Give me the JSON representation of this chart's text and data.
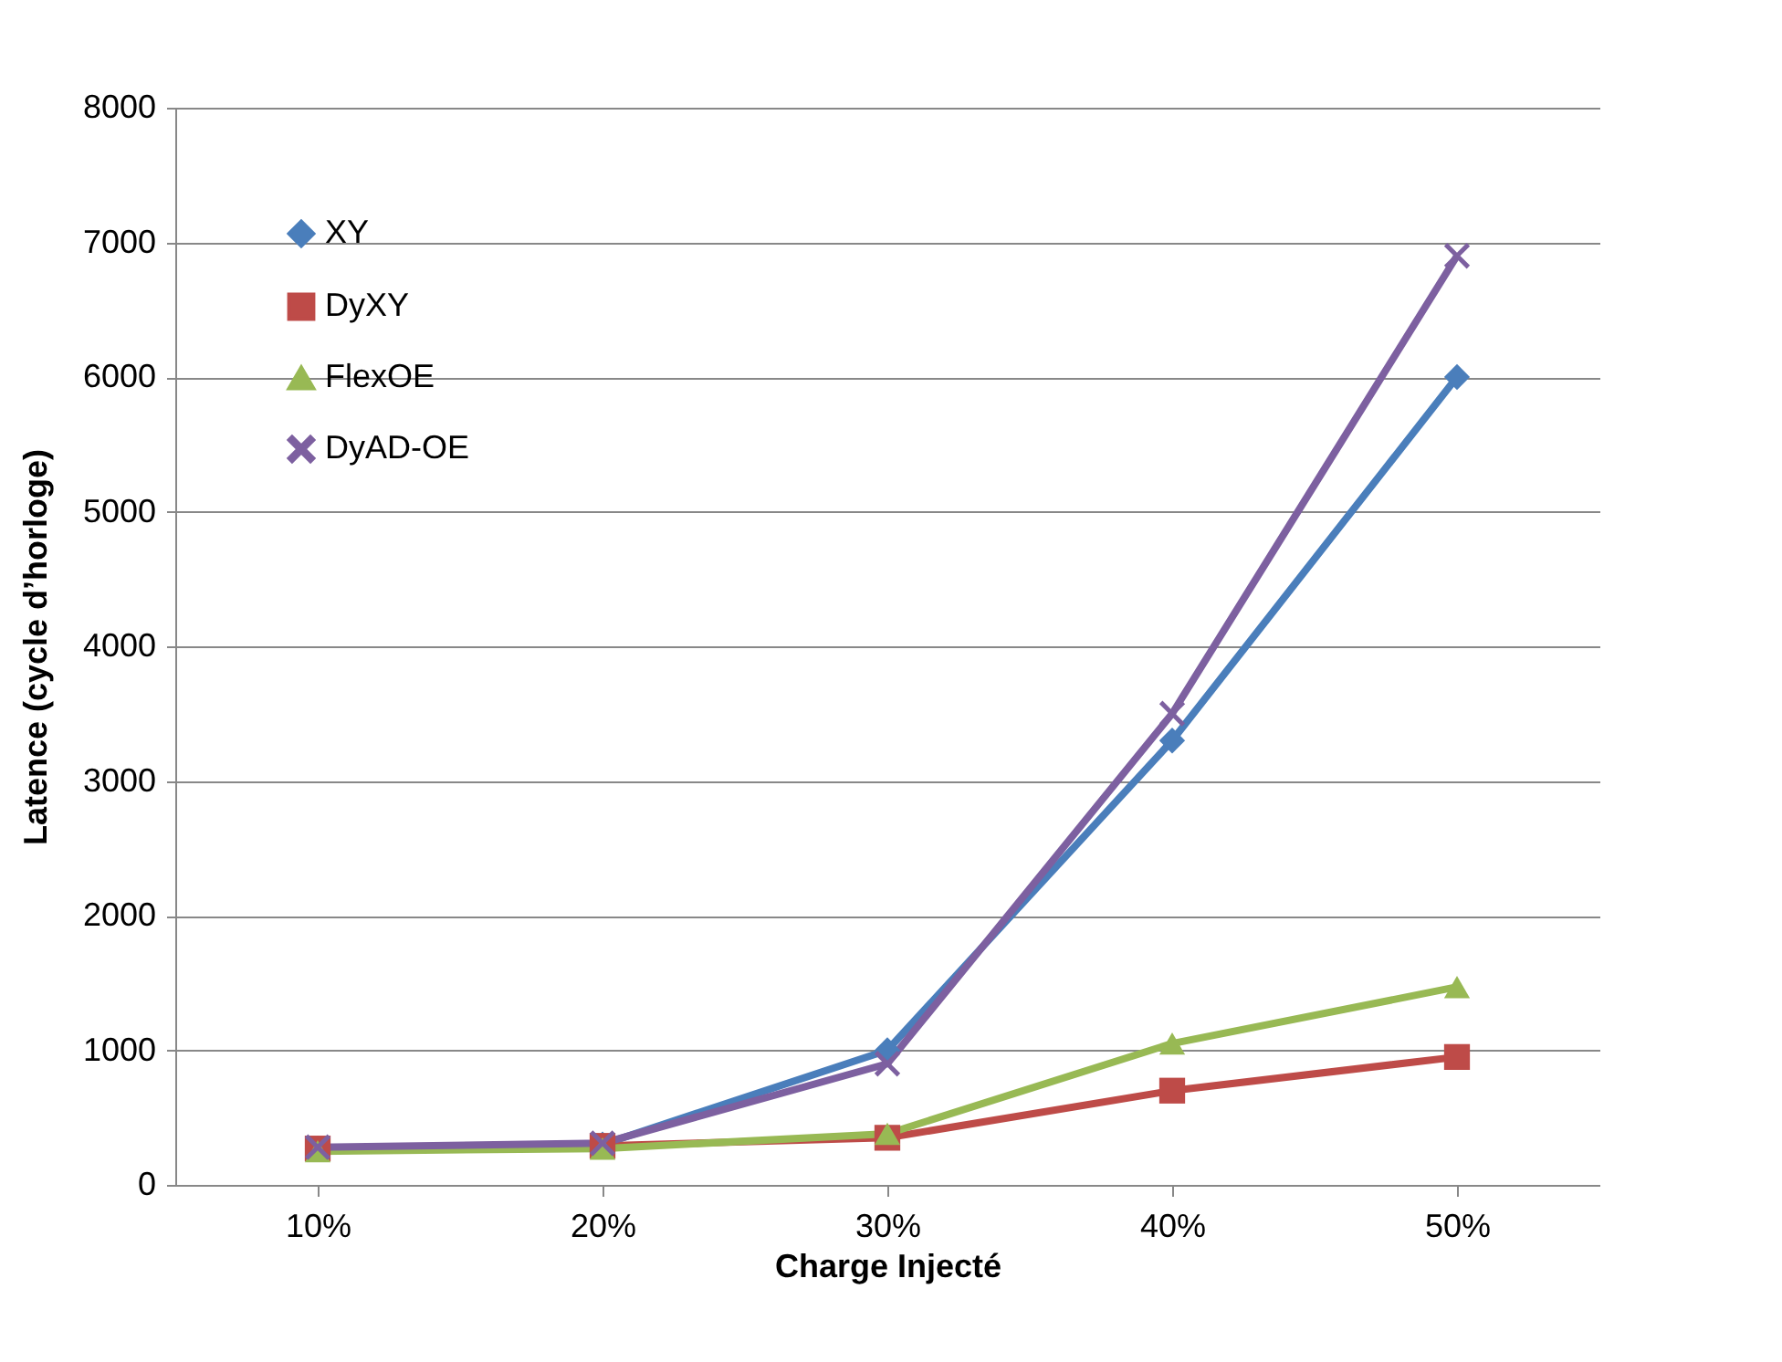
{
  "chart_data": {
    "type": "line",
    "xlabel": "Charge Injecté",
    "ylabel": "Latence (cycle d’horloge)",
    "categories": [
      "10%",
      "20%",
      "30%",
      "40%",
      "50%"
    ],
    "series": [
      {
        "name": "XY",
        "color": "#4a7ebb",
        "marker": "diamond",
        "values": [
          270,
          300,
          1000,
          3300,
          6000
        ]
      },
      {
        "name": "DyXY",
        "color": "#be4b48",
        "marker": "square",
        "values": [
          270,
          290,
          350,
          700,
          950
        ]
      },
      {
        "name": "FlexOE",
        "color": "#98b954",
        "marker": "triangle",
        "values": [
          250,
          270,
          380,
          1050,
          1470
        ]
      },
      {
        "name": "DyAD-OE",
        "color": "#7d60a0",
        "marker": "cross",
        "values": [
          280,
          310,
          900,
          3500,
          6900
        ]
      }
    ],
    "ylim": [
      0,
      8000
    ],
    "yticks": [
      0,
      1000,
      2000,
      3000,
      4000,
      5000,
      6000,
      7000,
      8000
    ],
    "grid": "y",
    "legend": "top left"
  }
}
